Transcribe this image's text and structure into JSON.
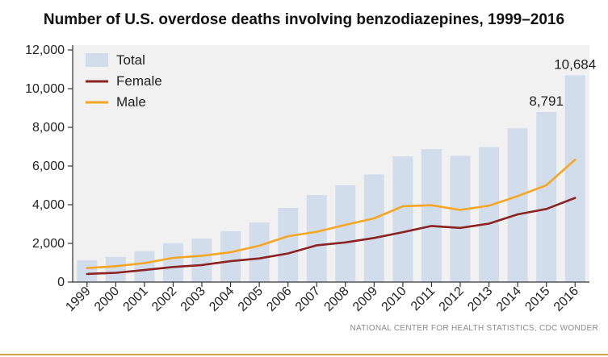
{
  "chart_data": {
    "type": "bar",
    "title": "Number of U.S. overdose deaths involving benzodiazepines, 1999–2016",
    "source": "NATIONAL CENTER FOR HEALTH STATISTICS, CDC WONDER",
    "xlabel": "",
    "ylabel": "",
    "ylim": [
      0,
      12000
    ],
    "yticks": [
      0,
      2000,
      4000,
      6000,
      8000,
      10000,
      12000
    ],
    "ytick_labels": [
      "0",
      "2,000",
      "4,000",
      "6,000",
      "8,000",
      "10,000",
      "12,000"
    ],
    "categories": [
      "1999",
      "2000",
      "2001",
      "2002",
      "2003",
      "2004",
      "2005",
      "2006",
      "2007",
      "2008",
      "2009",
      "2010",
      "2011",
      "2012",
      "2013",
      "2014",
      "2015",
      "2016"
    ],
    "series": [
      {
        "name": "Total",
        "type": "bar",
        "color": "#d2ddec",
        "values": [
          1135,
          1298,
          1594,
          2007,
          2248,
          2627,
          3079,
          3835,
          4497,
          5000,
          5568,
          6497,
          6872,
          6524,
          6973,
          7945,
          8791,
          10684
        ]
      },
      {
        "name": "Female",
        "type": "line",
        "color": "#8b2323",
        "values": [
          420,
          480,
          620,
          780,
          880,
          1080,
          1220,
          1480,
          1900,
          2050,
          2280,
          2580,
          2900,
          2800,
          3020,
          3500,
          3780,
          4350
        ]
      },
      {
        "name": "Male",
        "type": "line",
        "color": "#f5a623",
        "values": [
          720,
          820,
          980,
          1250,
          1360,
          1540,
          1880,
          2370,
          2600,
          2960,
          3290,
          3920,
          3970,
          3730,
          3950,
          4440,
          5010,
          6330
        ]
      }
    ],
    "data_labels": [
      {
        "category": "2015",
        "text": "8,791"
      },
      {
        "category": "2016",
        "text": "10,684"
      }
    ],
    "legend": {
      "position": "top-left",
      "entries": [
        "Total",
        "Female",
        "Male"
      ]
    },
    "grid": false
  }
}
